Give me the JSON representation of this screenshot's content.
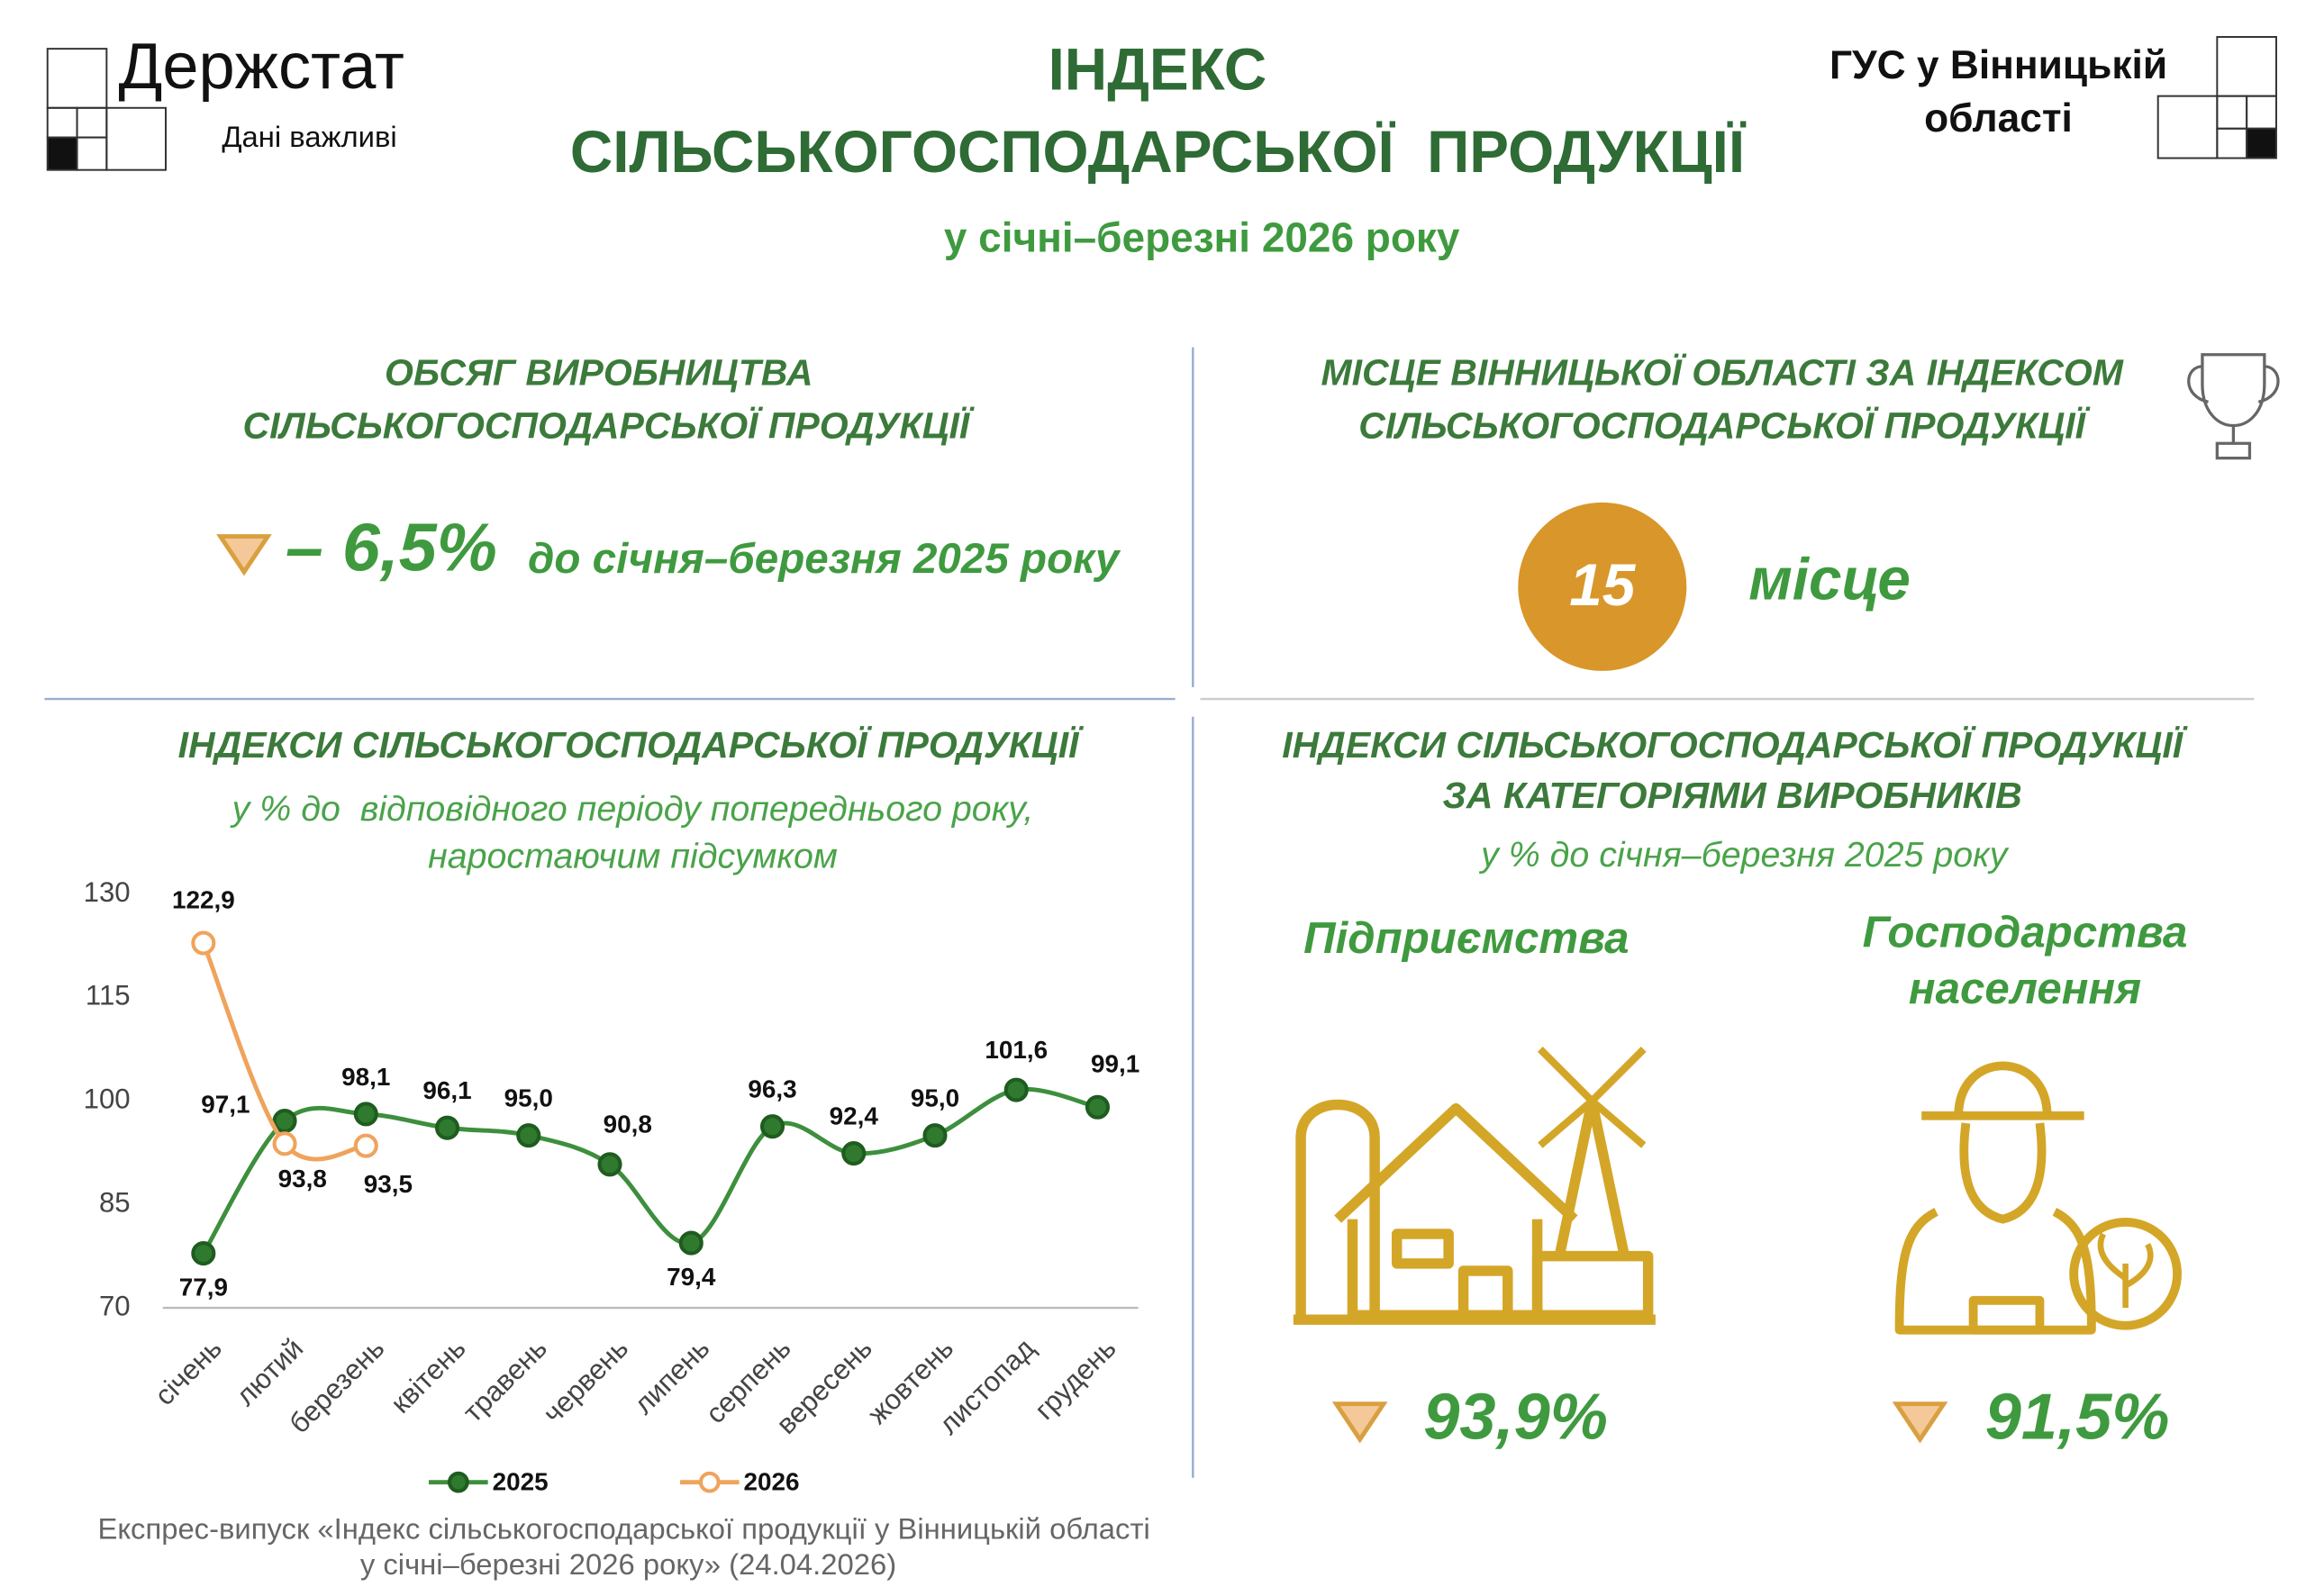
{
  "header": {
    "logo": "Держстат",
    "tagline": "Дані важливі",
    "title": [
      "ІНДЕКС",
      "СІЛЬСЬКОГОСПОДАРСЬКОЇ  ПРОДУКЦІЇ"
    ],
    "subtitle": "у січні–березні 2026 року",
    "office": [
      "ГУС у Вінницькій",
      "області"
    ]
  },
  "volume": {
    "title": [
      "ОБСЯГ ВИРОБНИЦТВА",
      "СІЛЬСЬКОГОСПОДАРСЬКОЇ ПРОДУКЦІЇ"
    ],
    "value": "– 6,5%",
    "note": "до січня–березня 2025 року"
  },
  "rank": {
    "title": [
      "МІСЦЕ ВІННИЦЬКОЇ ОБЛАСТІ ЗА ІНДЕКСОМ",
      "СІЛЬСЬКОГОСПОДАРСЬКОЇ ПРОДУКЦІЇ"
    ],
    "value": "15",
    "unit": "місце"
  },
  "producers": {
    "title": [
      "ІНДЕКСИ СІЛЬСЬКОГОСПОДАРСЬКОЇ ПРОДУКЦІЇ",
      "ЗА КАТЕГОРІЯМИ ВИРОБНИКІВ"
    ],
    "subtitle": "у % до січня–березня 2025 року",
    "items": [
      {
        "name": [
          "Підприємства"
        ],
        "value": "93,9%"
      },
      {
        "name": [
          "Господарства",
          "населення"
        ],
        "value": "91,5%"
      }
    ]
  },
  "chart_data": {
    "type": "line",
    "title": "ІНДЕКСИ СІЛЬСЬКОГОСПОДАРСЬКОЇ ПРОДУКЦІЇ",
    "subtitle": [
      "у % до  відповідного періоду попереднього року,",
      "наростаючим підсумком"
    ],
    "categories": [
      "січень",
      "лютий",
      "березень",
      "квітень",
      "травень",
      "червень",
      "липень",
      "серпень",
      "вересень",
      "жовтень",
      "листопад",
      "грудень"
    ],
    "series": [
      {
        "name": "2025",
        "color": "#3d8f3d",
        "values": [
          77.9,
          97.1,
          98.1,
          96.1,
          95.0,
          90.8,
          79.4,
          96.3,
          92.4,
          95.0,
          101.6,
          99.1
        ],
        "value_labels": [
          "77,9",
          "97,1",
          "98,1",
          "96,1",
          "95,0",
          "90,8",
          "79,4",
          "96,3",
          "92,4",
          "95,0",
          "101,6",
          "99,1"
        ]
      },
      {
        "name": "2026",
        "color": "#f0a35c",
        "values": [
          122.9,
          93.8,
          93.5,
          null,
          null,
          null,
          null,
          null,
          null,
          null,
          null,
          null
        ],
        "value_labels": [
          "122,9",
          "93,8",
          "93,5",
          null,
          null,
          null,
          null,
          null,
          null,
          null,
          null,
          null
        ]
      }
    ],
    "ylim": [
      70,
      130
    ],
    "yticks": [
      70,
      85,
      100,
      115,
      130
    ]
  },
  "footer": [
    "Експрес-випуск «Індекс сільськогосподарської продукції у Вінницькій області",
    "у січні–березні 2026 року» (24.04.2026)"
  ]
}
